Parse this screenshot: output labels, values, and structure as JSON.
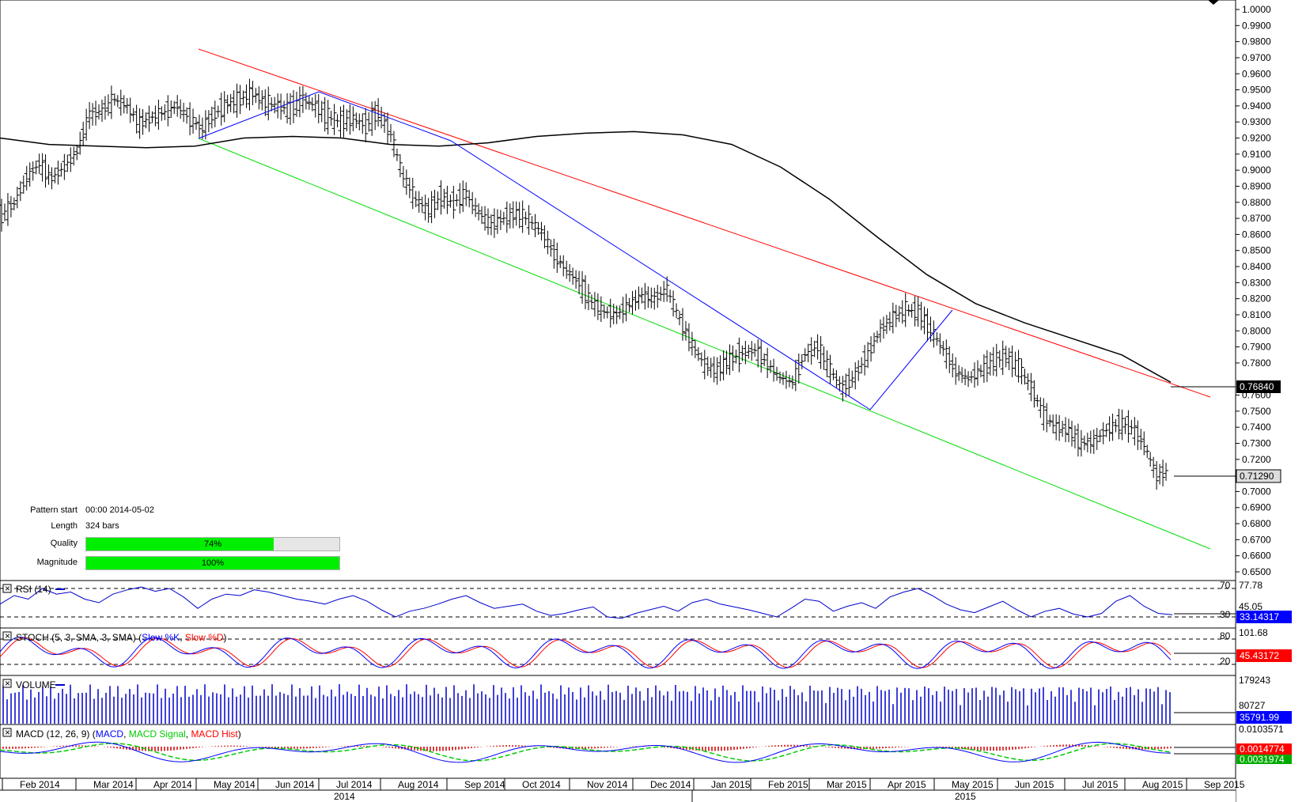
{
  "chart_data": {
    "type": "line",
    "price_axis": {
      "ylim": [
        0.65,
        1.005
      ],
      "ticks": [
        "1.0000",
        "0.9900",
        "0.9800",
        "0.9700",
        "0.9600",
        "0.9500",
        "0.9400",
        "0.9300",
        "0.9200",
        "0.9100",
        "0.9000",
        "0.8900",
        "0.8800",
        "0.8700",
        "0.8600",
        "0.8500",
        "0.8400",
        "0.8300",
        "0.8200",
        "0.8100",
        "0.8000",
        "0.7900",
        "0.7800",
        "0.7600",
        "0.7500",
        "0.7400",
        "0.7300",
        "0.7200",
        "0.7100",
        "0.7000",
        "0.6900",
        "0.6800",
        "0.6700",
        "0.6600",
        "0.6500"
      ],
      "ma_label": "0.76840",
      "last_label": "0.71290"
    },
    "x_axis": {
      "months": [
        "Feb 2014",
        "Mar 2014",
        "Apr 2014",
        "May 2014",
        "Jun 2014",
        "Jul 2014",
        "Aug 2014",
        "Sep 2014",
        "Oct 2014",
        "Nov 2014",
        "Dec 2014",
        "Jan 2015",
        "Feb 2015",
        "Mar 2015",
        "Apr 2015",
        "May 2015",
        "Jun 2015",
        "Jul 2015",
        "Aug 2015",
        "Sep 2015"
      ],
      "years": [
        "2014",
        "2015"
      ]
    },
    "series": [
      {
        "name": "price",
        "values": [
          0.872,
          0.879,
          0.895,
          0.904,
          0.895,
          0.902,
          0.911,
          0.934,
          0.937,
          0.944,
          0.94,
          0.929,
          0.933,
          0.936,
          0.94,
          0.932,
          0.926,
          0.935,
          0.941,
          0.944,
          0.948,
          0.942,
          0.94,
          0.938,
          0.944,
          0.94,
          0.933,
          0.93,
          0.932,
          0.928,
          0.936,
          0.923,
          0.896,
          0.882,
          0.875,
          0.883,
          0.88,
          0.885,
          0.874,
          0.866,
          0.87,
          0.873,
          0.869,
          0.862,
          0.848,
          0.838,
          0.83,
          0.818,
          0.812,
          0.81,
          0.816,
          0.822,
          0.82,
          0.826,
          0.808,
          0.792,
          0.779,
          0.775,
          0.782,
          0.786,
          0.788,
          0.78,
          0.771,
          0.768,
          0.785,
          0.79,
          0.776,
          0.764,
          0.772,
          0.785,
          0.8,
          0.808,
          0.813,
          0.812,
          0.801,
          0.789,
          0.775,
          0.77,
          0.775,
          0.781,
          0.784,
          0.778,
          0.765,
          0.748,
          0.74,
          0.738,
          0.73,
          0.731,
          0.738,
          0.742,
          0.74,
          0.73,
          0.71,
          0.713
        ]
      },
      {
        "name": "200-period MA",
        "values": [
          0.92,
          0.916,
          0.915,
          0.914,
          0.915,
          0.92,
          0.921,
          0.92,
          0.916,
          0.915,
          0.917,
          0.921,
          0.923,
          0.924,
          0.922,
          0.916,
          0.902,
          0.882,
          0.858,
          0.835,
          0.817,
          0.805,
          0.795,
          0.785,
          0.768
        ]
      }
    ],
    "pattern": {
      "start_label": "Pattern start",
      "start": "00:00 2014-05-02",
      "length_label": "Length",
      "length": "324 bars",
      "quality_label": "Quality",
      "quality": 74,
      "quality_text": "74%",
      "magnitude_label": "Magnitude",
      "magnitude": 100,
      "magnitude_text": "100%"
    },
    "indicators": {
      "rsi": {
        "title": "RSI (14)",
        "levels": [
          "70",
          "30"
        ],
        "top": "77.78",
        "mid": "45.05",
        "value": "33.14317",
        "values": [
          48,
          60,
          55,
          70,
          62,
          65,
          55,
          50,
          62,
          68,
          72,
          66,
          70,
          58,
          42,
          55,
          62,
          60,
          68,
          65,
          60,
          55,
          52,
          48,
          55,
          60,
          52,
          40,
          30,
          38,
          42,
          48,
          55,
          60,
          50,
          42,
          45,
          48,
          38,
          32,
          35,
          40,
          44,
          30,
          28,
          35,
          40,
          45,
          38,
          50,
          55,
          48,
          44,
          40,
          35,
          30,
          42,
          55,
          52,
          38,
          45,
          50,
          42,
          58,
          65,
          70,
          60,
          48,
          40,
          36,
          44,
          52,
          40,
          30,
          38,
          42,
          34,
          30,
          35,
          52,
          60,
          45,
          35,
          33
        ]
      },
      "stoch": {
        "title": "STOCH (5, 3, SMA, 3, SMA)",
        "legend_k": "Slow %K",
        "legend_d": "Slow %D",
        "levels": [
          "80",
          "20"
        ],
        "top": "101.68",
        "value": "45.43172"
      },
      "volume": {
        "title": "VOLUME",
        "top": "179243",
        "mid": "80727",
        "value": "35791.99"
      },
      "macd": {
        "title": "MACD (12, 26, 9)",
        "legend_macd": "MACD",
        "legend_signal": "MACD Signal",
        "legend_hist": "MACD Hist",
        "top": "0.0103571",
        "value": "0.0014774",
        "signal_value": "0.0031974"
      }
    },
    "colors": {
      "upper_channel": "#ff0000",
      "lower_channel": "#00dd00",
      "zigzag": "#0000ff",
      "ma": "#000000",
      "rsi": "#0000cc",
      "stoch_k": "#0000ff",
      "stoch_d": "#ff0000",
      "volume": "#0000cc",
      "macd": "#0000ff",
      "signal": "#00cc00",
      "hist": "#cc0000"
    }
  }
}
